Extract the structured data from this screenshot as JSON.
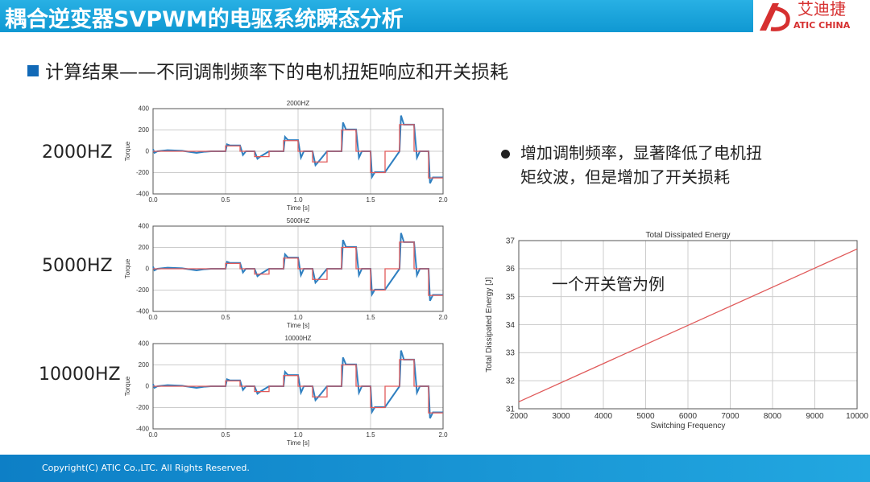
{
  "header": {
    "title": "耦合逆变器SVPWM的电驱系统瞬态分析",
    "logo_cn": "艾迪捷",
    "logo_en": "ATIC CHINA"
  },
  "subtitle": "计算结果——不同调制频率下的电机扭矩响应和开关损耗",
  "freq_labels": [
    "2000HZ",
    "5000HZ",
    "10000HZ"
  ],
  "bullet": [
    "增加调制频率，显著降低了电机扭",
    "矩纹波，但是增加了开关损耗"
  ],
  "note": "一个开关管为例",
  "footer": "Copyright(C) ATIC Co.,LTC. All Rights Reserved.",
  "colors": {
    "header": "#1aa4dc",
    "reference": "#e05a5a",
    "measured": "#2f7fc0",
    "energy_line": "#e05a5a"
  },
  "chart_data": [
    {
      "type": "line",
      "title": "2000HZ",
      "xlabel": "Time [s]",
      "ylabel": "Torque",
      "xlim": [
        0,
        2
      ],
      "ylim": [
        -400,
        400
      ],
      "xticks": [
        "0.0",
        "0.5",
        "1.0",
        "1.5",
        "2.0"
      ],
      "yticks": [
        "400",
        "200",
        "0",
        "-200",
        "-400"
      ],
      "grid": true,
      "series": [
        {
          "role": "reference",
          "x": [
            0,
            0.5,
            0.5,
            0.6,
            0.6,
            0.7,
            0.7,
            0.8,
            0.8,
            0.9,
            0.9,
            1.0,
            1.0,
            1.1,
            1.1,
            1.2,
            1.2,
            1.3,
            1.3,
            1.4,
            1.4,
            1.5,
            1.5,
            1.6,
            1.6,
            1.7,
            1.7,
            1.8,
            1.8,
            1.9,
            1.9,
            2.0
          ],
          "y": [
            0,
            0,
            50,
            50,
            0,
            0,
            -50,
            -50,
            0,
            0,
            100,
            100,
            0,
            0,
            -100,
            -100,
            0,
            0,
            200,
            200,
            0,
            0,
            -200,
            -200,
            0,
            0,
            250,
            250,
            0,
            0,
            -250,
            -250
          ]
        },
        {
          "role": "measured",
          "x": [
            0,
            0.01,
            0.03,
            0.1,
            0.2,
            0.3,
            0.35,
            0.4,
            0.5,
            0.51,
            0.53,
            0.6,
            0.62,
            0.64,
            0.7,
            0.72,
            0.74,
            0.8,
            0.9,
            0.91,
            0.93,
            1.0,
            1.02,
            1.04,
            1.1,
            1.12,
            1.14,
            1.2,
            1.3,
            1.31,
            1.33,
            1.4,
            1.42,
            1.44,
            1.5,
            1.51,
            1.53,
            1.6,
            1.7,
            1.71,
            1.73,
            1.8,
            1.82,
            1.84,
            1.9,
            1.91,
            1.93,
            2.0
          ],
          "y": [
            20,
            -15,
            0,
            10,
            5,
            -15,
            -5,
            0,
            0,
            65,
            55,
            55,
            -35,
            0,
            0,
            -70,
            -50,
            0,
            0,
            135,
            105,
            105,
            -60,
            0,
            0,
            -130,
            -100,
            0,
            0,
            270,
            205,
            205,
            -60,
            0,
            0,
            -240,
            -195,
            -195,
            0,
            335,
            250,
            250,
            -60,
            0,
            0,
            -300,
            -245,
            -245
          ]
        }
      ]
    },
    {
      "type": "line",
      "title": "5000HZ",
      "xlabel": "Time [s]",
      "ylabel": "Torque",
      "xlim": [
        0,
        2
      ],
      "ylim": [
        -400,
        400
      ],
      "xticks": [
        "0.0",
        "0.5",
        "1.0",
        "1.5",
        "2.0"
      ],
      "yticks": [
        "400",
        "200",
        "0",
        "-200",
        "-400"
      ],
      "grid": true,
      "series_same_as": "2000HZ"
    },
    {
      "type": "line",
      "title": "10000HZ",
      "xlabel": "Time [s]",
      "ylabel": "Torque",
      "xlim": [
        0,
        2
      ],
      "ylim": [
        -400,
        400
      ],
      "xticks": [
        "0.0",
        "0.5",
        "1.0",
        "1.5",
        "2.0"
      ],
      "yticks": [
        "400",
        "200",
        "0",
        "-200",
        "-400"
      ],
      "grid": true,
      "series_same_as": "2000HZ"
    },
    {
      "type": "line",
      "title": "Total Dissipated Energy",
      "xlabel": "Switching Frequency",
      "ylabel": "Total Dissipated Energy [J]",
      "xlim": [
        2000,
        10000
      ],
      "ylim": [
        31,
        37
      ],
      "grid": true,
      "xticks": [
        "2000",
        "3000",
        "4000",
        "5000",
        "6000",
        "7000",
        "8000",
        "9000",
        "10000"
      ],
      "yticks": [
        "37",
        "36",
        "35",
        "34",
        "33",
        "32",
        "31"
      ],
      "series": [
        {
          "x": [
            2000,
            10000
          ],
          "y": [
            31.25,
            36.7
          ]
        }
      ]
    }
  ]
}
